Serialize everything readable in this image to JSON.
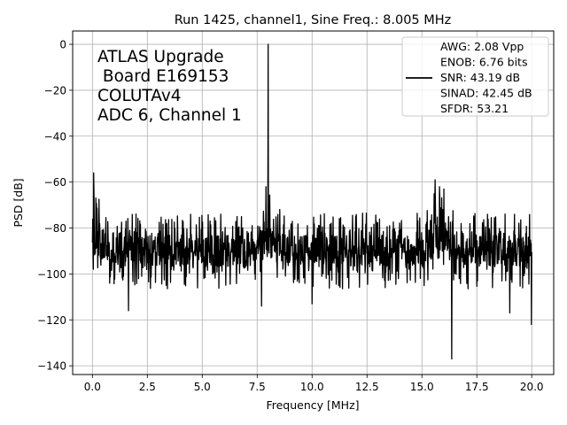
{
  "chart_data": {
    "type": "line",
    "title": "Run 1425, channel1, Sine Freq.: 8.005 MHz",
    "xlabel": "Frequency [MHz]",
    "ylabel": "PSD [dB]",
    "xlim": [
      -0.9,
      21.0
    ],
    "ylim": [
      -143.8,
      5.8
    ],
    "xticks": [
      0.0,
      2.5,
      5.0,
      7.5,
      10.0,
      12.5,
      15.0,
      17.5,
      20.0
    ],
    "xtick_labels": [
      "0.0",
      "2.5",
      "5.0",
      "7.5",
      "10.0",
      "12.5",
      "15.0",
      "17.5",
      "20.0"
    ],
    "yticks": [
      0,
      -20,
      -40,
      -60,
      -80,
      -100,
      -120,
      -140
    ],
    "ytick_labels": [
      "0",
      "−20",
      "−40",
      "−60",
      "−80",
      "−100",
      "−120",
      "−140"
    ],
    "grid": true,
    "color": "#000000",
    "annotation_lines": [
      "ATLAS Upgrade",
      " Board E169153",
      "COLUTAv4",
      "ADC 6, Channel 1"
    ],
    "legend": {
      "placement": "top-right",
      "lines": [
        "AWG: 2.08 Vpp",
        "ENOB: 6.76 bits",
        "SNR: 43.19 dB",
        "SINAD: 42.45 dB",
        "SFDR: 53.21"
      ]
    },
    "series": [
      {
        "name": "AWG: 2.08 Vpp\nENOB: 6.76 bits\nSNR: 43.19 dB\nSINAD: 42.45 dB\nSFDR: 53.21",
        "x_range": [
          0.0,
          20.0
        ],
        "baseline_db": -90,
        "noise_band_db": [
          -105,
          -72
        ],
        "peaks": [
          {
            "x": 8.005,
            "y": 0.0
          },
          {
            "x": 0.05,
            "y": -56
          },
          {
            "x": 7.9,
            "y": -62
          },
          {
            "x": 15.6,
            "y": -59
          },
          {
            "x": 15.8,
            "y": -62
          },
          {
            "x": 16.0,
            "y": -63
          }
        ],
        "dips": [
          {
            "x": 16.35,
            "y": -137
          },
          {
            "x": 19.98,
            "y": -122
          },
          {
            "x": 1.65,
            "y": -116
          },
          {
            "x": 7.7,
            "y": -114
          },
          {
            "x": 10.0,
            "y": -113
          },
          {
            "x": 19.0,
            "y": -117
          }
        ]
      }
    ]
  }
}
